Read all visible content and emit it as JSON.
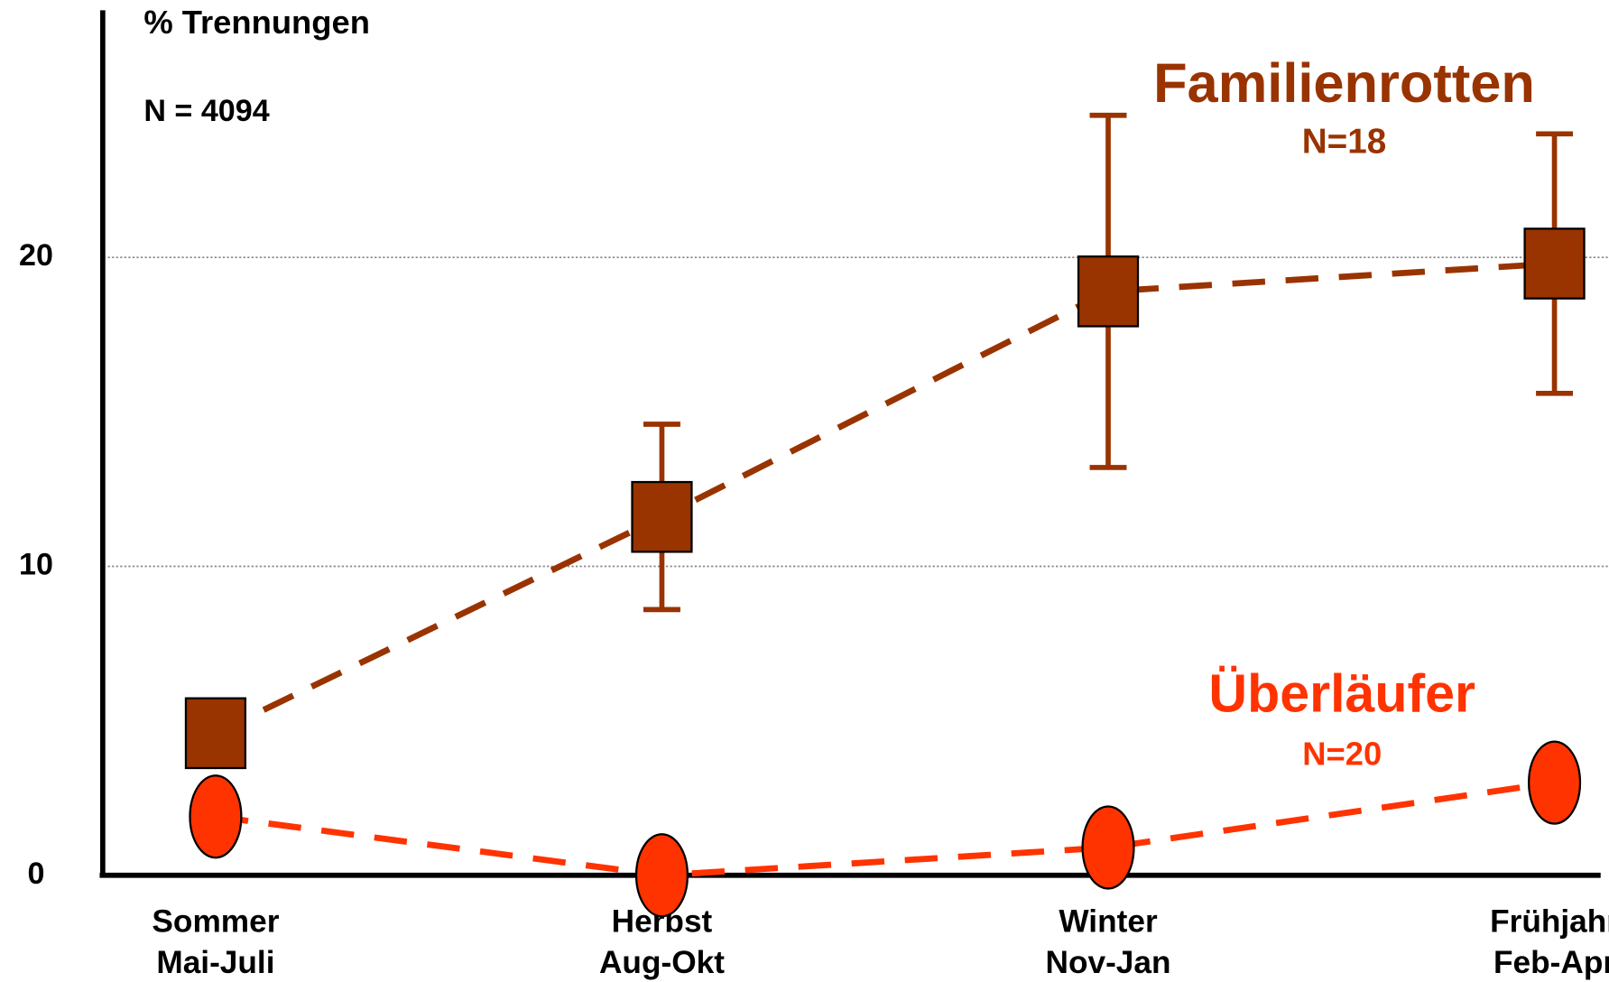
{
  "chart_data": {
    "type": "line",
    "y_label": "% Trennungen",
    "annotation": "N = 4094",
    "categories": [
      [
        "Sommer",
        "Mai-Juli"
      ],
      [
        "Herbst",
        "Aug-Okt"
      ],
      [
        "Winter",
        "Nov-Jan"
      ],
      [
        "Frühjahr",
        "Feb-Apr"
      ]
    ],
    "ylim": [
      0,
      28
    ],
    "yticks": [
      0,
      10,
      20
    ],
    "grid": true,
    "series": [
      {
        "name": "Familienrotten",
        "n": "N=18",
        "color": "#993300",
        "marker": "square",
        "values": [
          4.6,
          11.6,
          18.9,
          19.8
        ],
        "errors": [
          null,
          3.0,
          5.7,
          4.2
        ]
      },
      {
        "name": "Überläufer",
        "n": "N=20",
        "color": "#ff3300",
        "marker": "ellipse",
        "values": [
          1.9,
          0,
          0.9,
          3.0
        ]
      }
    ]
  }
}
